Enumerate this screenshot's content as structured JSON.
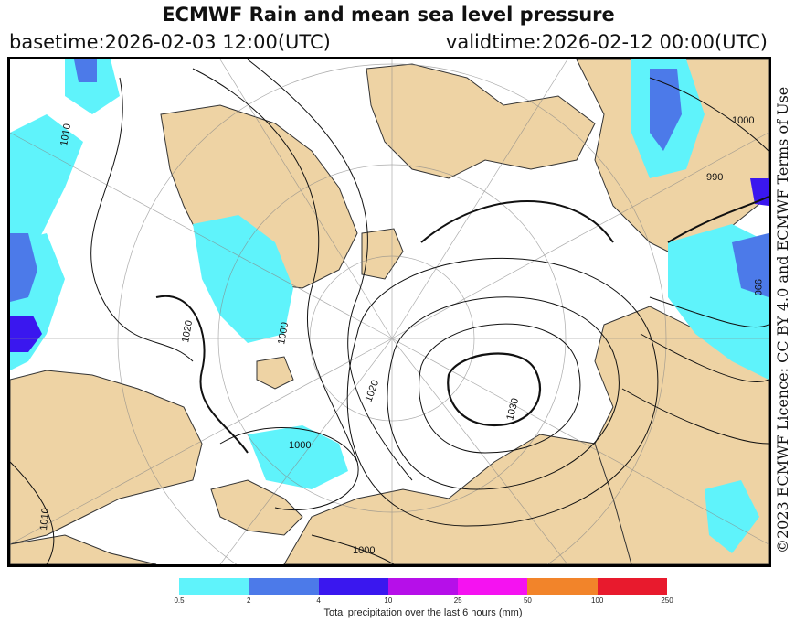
{
  "header": {
    "title": "ECMWF Rain and mean sea level pressure",
    "basetime": "basetime:2026-02-03 12:00(UTC)",
    "validtime": "validtime:2026-02-12 00:00(UTC)"
  },
  "licence": "©2023 ECMWF Licence: CC BY 4.0 and ECMWF Terms of Use",
  "map": {
    "isobar_labels": [
      "1010",
      "1000",
      "1010",
      "1020",
      "1030",
      "1000",
      "1000",
      "990",
      "1020",
      "1000",
      "990"
    ],
    "colors": {
      "land": "#eed3a4",
      "ocean": "#ffffff",
      "isobar": "#111111",
      "grid": "#888888"
    }
  },
  "legend": {
    "caption": "Total precipitation over the last 6 hours (mm)",
    "ticks": [
      "0.5",
      "2",
      "4",
      "10",
      "25",
      "50",
      "100",
      "250"
    ],
    "colors": [
      "#5ff3fb",
      "#4c7ae9",
      "#3a17ef",
      "#b60fe9",
      "#f512f1",
      "#f2842a",
      "#e81a2d"
    ]
  }
}
